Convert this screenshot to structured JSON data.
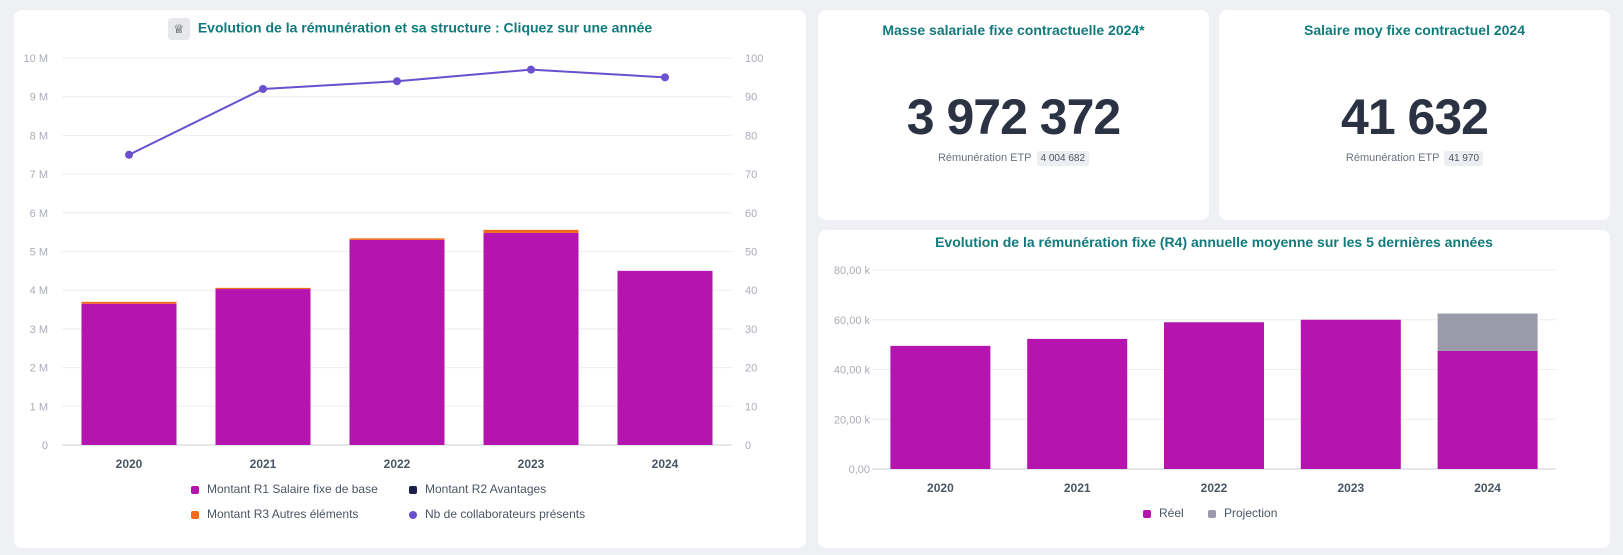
{
  "colors": {
    "r1": "#b514ae",
    "r2": "#1b1f4a",
    "r3": "#f26a1b",
    "collab": "#6a4fcf",
    "projection": "#9a9aab",
    "title": "#107a7c"
  },
  "main_card": {
    "title": "Evolution de la rémunération et sa structure : Cliquez sur une année",
    "icon": "crown-icon"
  },
  "masse_card": {
    "title": "Masse salariale fixe contractuelle 2024*",
    "value": "3 972 372",
    "sub_label": "Rémunération ETP",
    "sub_value": "4 004 682"
  },
  "salaire_card": {
    "title": "Salaire moy fixe contractuel 2024",
    "value": "41 632",
    "sub_label": "Rémunération ETP",
    "sub_value": "41 970"
  },
  "r4_card": {
    "title": "Evolution de la rémunération fixe (R4) annuelle moyenne sur les 5 dernières années"
  },
  "chart_data": [
    {
      "type": "bar",
      "stacked": true,
      "categories": [
        "2020",
        "2021",
        "2022",
        "2023",
        "2024"
      ],
      "series": [
        {
          "name": "Montant R1 Salaire fixe de base",
          "values": [
            3.65,
            4.03,
            5.3,
            5.48,
            4.5
          ]
        },
        {
          "name": "Montant R2 Avantages",
          "values": [
            0,
            0,
            0,
            0,
            0
          ]
        },
        {
          "name": "Montant R3 Autres éléments",
          "values": [
            0.05,
            0.03,
            0.04,
            0.08,
            0
          ]
        },
        {
          "name": "Nb de collaborateurs présents",
          "axis": "right",
          "line": true,
          "values": [
            75,
            92,
            94,
            97,
            95
          ]
        }
      ],
      "y_left_ticks": [
        "0",
        "1 M",
        "2 M",
        "3 M",
        "4 M",
        "5 M",
        "6 M",
        "7 M",
        "8 M",
        "9 M",
        "10 M"
      ],
      "y_right_ticks": [
        "0",
        "10",
        "20",
        "30",
        "40",
        "50",
        "60",
        "70",
        "80",
        "90",
        "100"
      ],
      "ylim_left": [
        0,
        10
      ],
      "ylim_right": [
        0,
        100
      ],
      "legend": "bottom"
    },
    {
      "type": "bar",
      "stacked": true,
      "categories": [
        "2020",
        "2021",
        "2022",
        "2023",
        "2024"
      ],
      "series": [
        {
          "name": "Réel",
          "values": [
            49.5,
            52.3,
            59,
            60,
            47.5
          ]
        },
        {
          "name": "Projection",
          "values": [
            0,
            0,
            0,
            0,
            15
          ]
        }
      ],
      "y_ticks": [
        "0,00",
        "20,00 k",
        "40,00 k",
        "60,00 k",
        "80,00 k"
      ],
      "ylim": [
        0,
        80
      ],
      "legend": "bottom"
    }
  ]
}
